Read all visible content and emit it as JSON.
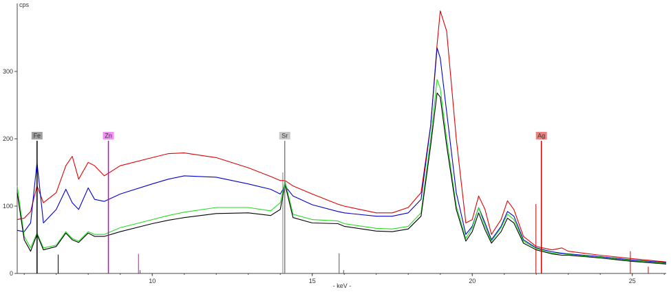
{
  "chart_data": {
    "type": "line",
    "y_label": "cps",
    "x_label": "- keV -",
    "xlim": [
      5.78,
      26.06
    ],
    "ylim": [
      0,
      401
    ],
    "xticks": [
      10,
      15,
      20,
      25
    ],
    "yticks": [
      0,
      100,
      200,
      300
    ],
    "x": [
      5.78,
      6.0,
      6.2,
      6.4,
      6.6,
      7.0,
      7.3,
      7.5,
      7.7,
      8.0,
      8.2,
      8.5,
      9,
      10,
      10.5,
      11,
      12,
      13,
      13.7,
      14.0,
      14.15,
      14.4,
      15,
      15.8,
      16,
      17,
      17.5,
      18,
      18.4,
      18.7,
      18.9,
      19.0,
      19.2,
      19.5,
      19.8,
      20.0,
      20.2,
      20.4,
      20.6,
      20.9,
      21.1,
      21.3,
      21.6,
      22,
      22.5,
      22.8,
      23,
      24,
      25,
      26.06
    ],
    "series": [
      {
        "color": "#dd0000",
        "values": [
          80,
          82,
          92,
          130,
          105,
          120,
          160,
          174,
          140,
          165,
          160,
          145,
          160,
          172,
          178,
          179,
          172,
          157,
          144,
          138,
          138,
          130,
          118,
          103,
          100,
          90,
          90,
          98,
          120,
          220,
          340,
          390,
          360,
          200,
          75,
          80,
          115,
          95,
          58,
          80,
          108,
          95,
          55,
          40,
          35,
          38,
          33,
          27,
          22,
          17
        ]
      },
      {
        "color": "#0000cc",
        "values": [
          64,
          62,
          75,
          165,
          75,
          95,
          125,
          105,
          95,
          127,
          110,
          107,
          118,
          133,
          140,
          145,
          143,
          133,
          125,
          118,
          130,
          115,
          102,
          92,
          90,
          85,
          85,
          90,
          110,
          220,
          335,
          320,
          240,
          120,
          58,
          70,
          98,
          75,
          50,
          70,
          92,
          85,
          50,
          38,
          32,
          30,
          29,
          25,
          20,
          16
        ]
      },
      {
        "color": "#22dd22",
        "values": [
          130,
          55,
          38,
          60,
          38,
          42,
          62,
          52,
          48,
          62,
          58,
          58,
          68,
          80,
          86,
          91,
          98,
          98,
          93,
          105,
          137,
          88,
          80,
          78,
          74,
          67,
          66,
          70,
          90,
          200,
          288,
          275,
          200,
          100,
          52,
          68,
          98,
          70,
          48,
          68,
          88,
          80,
          48,
          37,
          30,
          29,
          28,
          24,
          19,
          15
        ]
      },
      {
        "color": "#000000",
        "values": [
          120,
          50,
          33,
          58,
          35,
          40,
          60,
          50,
          46,
          60,
          55,
          55,
          62,
          74,
          79,
          83,
          89,
          90,
          86,
          95,
          132,
          83,
          75,
          74,
          70,
          63,
          62,
          66,
          85,
          190,
          268,
          262,
          190,
          95,
          48,
          62,
          90,
          65,
          45,
          62,
          82,
          75,
          45,
          35,
          29,
          27,
          27,
          23,
          18,
          14
        ]
      }
    ],
    "elements": [
      {
        "label": "Fe",
        "energy": 6.4,
        "height": 197,
        "color": "#000000",
        "tag_color": "#a0a0a0"
      },
      {
        "label": "Zn",
        "energy": 8.63,
        "height": 197,
        "color": "#cc00cc",
        "tag_color": "#f090f0"
      },
      {
        "label": "Sr",
        "energy": 14.14,
        "height": 197,
        "color": "#808080",
        "tag_color": "#c8c8c8"
      },
      {
        "label": "Ag",
        "energy": 22.16,
        "height": 197,
        "color": "#cc0000",
        "tag_color": "#f08080"
      }
    ],
    "peak_lines": [
      {
        "energy": 7.06,
        "height": 28,
        "color": "#000000"
      },
      {
        "energy": 9.57,
        "height": 29,
        "color": "#cc00cc"
      },
      {
        "energy": 9.62,
        "height": 5,
        "color": "#cc00cc"
      },
      {
        "energy": 14.08,
        "height": 150,
        "color": "#808080"
      },
      {
        "energy": 15.84,
        "height": 30,
        "color": "#555555"
      },
      {
        "energy": 15.98,
        "height": 5,
        "color": "#555555"
      },
      {
        "energy": 21.99,
        "height": 103,
        "color": "#cc0000"
      },
      {
        "energy": 24.94,
        "height": 33,
        "color": "#cc0000"
      },
      {
        "energy": 25.5,
        "height": 10,
        "color": "#cc0000"
      }
    ]
  }
}
